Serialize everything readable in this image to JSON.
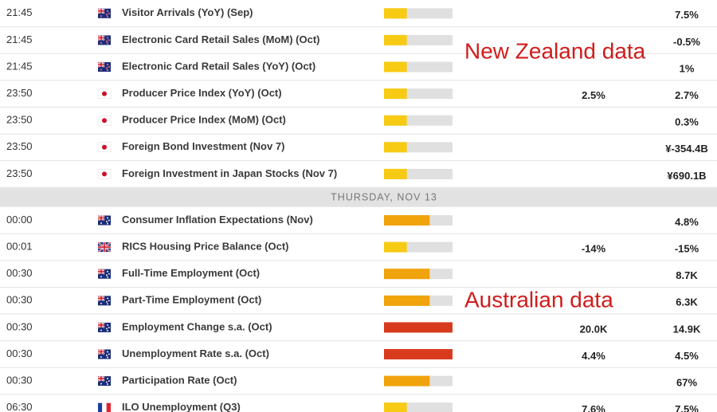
{
  "impact_colors": [
    "#f7cb14",
    "#f0a30a",
    "#d83a1e"
  ],
  "annotations": [
    "New Zealand data",
    "Australian data"
  ],
  "sections": [
    {
      "rows": [
        {
          "time": "21:45",
          "flag": "nz",
          "event": "Visitor Arrivals (YoY) (Sep)",
          "impact": 1,
          "forecast": null,
          "previous": "7.5%"
        },
        {
          "time": "21:45",
          "flag": "nz",
          "event": "Electronic Card Retail Sales (MoM) (Oct)",
          "impact": 1,
          "forecast": null,
          "previous": "-0.5%"
        },
        {
          "time": "21:45",
          "flag": "nz",
          "event": "Electronic Card Retail Sales (YoY) (Oct)",
          "impact": 1,
          "forecast": null,
          "previous": "1%"
        },
        {
          "time": "23:50",
          "flag": "jp",
          "event": "Producer Price Index (YoY) (Oct)",
          "impact": 1,
          "forecast": "2.5%",
          "previous": "2.7%"
        },
        {
          "time": "23:50",
          "flag": "jp",
          "event": "Producer Price Index (MoM) (Oct)",
          "impact": 1,
          "forecast": null,
          "previous": "0.3%"
        },
        {
          "time": "23:50",
          "flag": "jp",
          "event": "Foreign Bond Investment (Nov 7)",
          "impact": 1,
          "forecast": null,
          "previous": "¥-354.4B"
        },
        {
          "time": "23:50",
          "flag": "jp",
          "event": "Foreign Investment in Japan Stocks (Nov 7)",
          "impact": 1,
          "forecast": null,
          "previous": "¥690.1B"
        }
      ]
    },
    {
      "heading": "THURSDAY, NOV 13",
      "rows": [
        {
          "time": "00:00",
          "flag": "au",
          "event": "Consumer Inflation Expectations (Nov)",
          "impact": 2,
          "forecast": null,
          "previous": "4.8%"
        },
        {
          "time": "00:01",
          "flag": "gb",
          "event": "RICS Housing Price Balance (Oct)",
          "impact": 1,
          "forecast": "-14%",
          "previous": "-15%"
        },
        {
          "time": "00:30",
          "flag": "au",
          "event": "Full-Time Employment (Oct)",
          "impact": 2,
          "forecast": null,
          "previous": "8.7K"
        },
        {
          "time": "00:30",
          "flag": "au",
          "event": "Part-Time Employment (Oct)",
          "impact": 2,
          "forecast": null,
          "previous": "6.3K"
        },
        {
          "time": "00:30",
          "flag": "au",
          "event": "Employment Change s.a. (Oct)",
          "impact": 3,
          "forecast": "20.0K",
          "previous": "14.9K"
        },
        {
          "time": "00:30",
          "flag": "au",
          "event": "Unemployment Rate s.a. (Oct)",
          "impact": 3,
          "forecast": "4.4%",
          "previous": "4.5%"
        },
        {
          "time": "00:30",
          "flag": "au",
          "event": "Participation Rate (Oct)",
          "impact": 2,
          "forecast": null,
          "previous": "67%"
        },
        {
          "time": "06:30",
          "flag": "fr",
          "event": "ILO Unemployment (Q3)",
          "impact": 1,
          "forecast": "7.6%",
          "previous": "7.5%"
        }
      ]
    }
  ]
}
